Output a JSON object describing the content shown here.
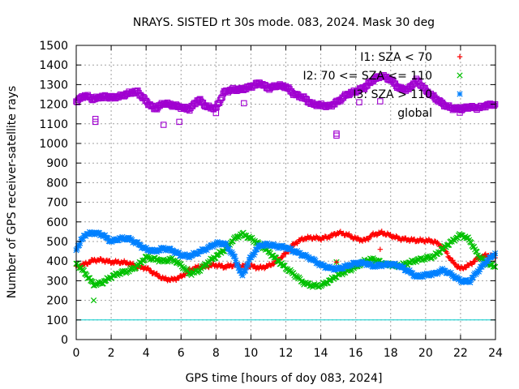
{
  "chart_data": {
    "type": "scatter",
    "title": "NRAYS. SISTED rt 30s mode. 083, 2024. Mask 30 deg",
    "xlabel": "GPS time [hours of doy 083, 2024]",
    "ylabel": "Number of GPS receiver-satellite rays",
    "xlim": [
      0,
      24
    ],
    "ylim": [
      0,
      1500
    ],
    "xticks": [
      "0",
      "2",
      "4",
      "6",
      "8",
      "10",
      "12",
      "14",
      "16",
      "18",
      "20",
      "22",
      "24"
    ],
    "yticks": [
      "0",
      "100",
      "200",
      "300",
      "400",
      "500",
      "600",
      "700",
      "800",
      "900",
      "1000",
      "1100",
      "1200",
      "1300",
      "1400",
      "1500"
    ],
    "grid": true,
    "legend_position": "top-right",
    "threshold_line": {
      "y": 100,
      "color": "#00cccc"
    },
    "series": [
      {
        "name": "I1: SZA < 70",
        "marker": "+",
        "color": "#ff0000",
        "x": [
          0,
          0.5,
          1,
          1.5,
          2,
          2.5,
          3,
          3.5,
          4,
          4.5,
          5,
          5.5,
          6,
          6.5,
          7,
          7.5,
          8,
          8.5,
          9,
          9.5,
          10,
          10.5,
          11,
          11.5,
          12,
          12.5,
          13,
          13.5,
          14,
          14.5,
          15,
          15.5,
          16,
          16.5,
          17,
          17.5,
          18,
          18.5,
          19,
          19.5,
          20,
          20.5,
          21,
          21.5,
          22,
          22.5,
          23,
          23.5,
          24
        ],
        "y": [
          370,
          385,
          405,
          405,
          395,
          395,
          390,
          370,
          365,
          335,
          310,
          305,
          320,
          355,
          370,
          375,
          380,
          370,
          380,
          375,
          375,
          365,
          375,
          400,
          440,
          490,
          515,
          520,
          515,
          525,
          545,
          535,
          515,
          505,
          535,
          545,
          530,
          515,
          510,
          505,
          505,
          500,
          470,
          400,
          360,
          380,
          415,
          430,
          420
        ]
      },
      {
        "name": "I2: 70 <= SZA <= 110",
        "marker": "x",
        "color": "#00c000",
        "x": [
          0,
          0.5,
          1,
          1.5,
          2,
          2.5,
          3,
          3.5,
          4,
          4.5,
          5,
          5.5,
          6,
          6.5,
          7,
          7.5,
          8,
          8.5,
          9,
          9.5,
          10,
          10.5,
          11,
          11.5,
          12,
          12.5,
          13,
          13.5,
          14,
          14.5,
          15,
          15.5,
          16,
          16.5,
          17,
          17.5,
          18,
          18.5,
          19,
          19.5,
          20,
          20.5,
          21,
          21.5,
          22,
          22.5,
          23,
          23.5,
          24
        ],
        "y": [
          390,
          340,
          280,
          290,
          320,
          340,
          350,
          375,
          420,
          410,
          400,
          410,
          380,
          335,
          350,
          390,
          425,
          460,
          510,
          540,
          515,
          485,
          450,
          405,
          365,
          330,
          290,
          275,
          275,
          300,
          330,
          350,
          370,
          400,
          410,
          390,
          380,
          375,
          390,
          405,
          415,
          425,
          465,
          500,
          535,
          510,
          430,
          390,
          370
        ]
      },
      {
        "name": "I3: SZA > 110",
        "marker": "*",
        "color": "#0080ff",
        "x": [
          0,
          0.5,
          1,
          1.5,
          2,
          2.5,
          3,
          3.5,
          4,
          4.5,
          5,
          5.5,
          6,
          6.5,
          7,
          7.5,
          8,
          8.5,
          9,
          9.5,
          10,
          10.5,
          11,
          11.5,
          12,
          12.5,
          13,
          13.5,
          14,
          14.5,
          15,
          15.5,
          16,
          16.5,
          17,
          17.5,
          18,
          18.5,
          19,
          19.5,
          20,
          20.5,
          21,
          21.5,
          22,
          22.5,
          23,
          23.5,
          24
        ],
        "y": [
          460,
          535,
          545,
          535,
          500,
          515,
          515,
          490,
          460,
          450,
          465,
          455,
          430,
          425,
          445,
          465,
          490,
          490,
          430,
          325,
          420,
          480,
          485,
          475,
          470,
          450,
          430,
          410,
          380,
          365,
          360,
          375,
          390,
          390,
          375,
          380,
          385,
          375,
          350,
          320,
          330,
          335,
          355,
          330,
          300,
          295,
          350,
          400,
          440
        ]
      },
      {
        "name": "global",
        "marker": "square",
        "color": "#a000d0",
        "x": [
          0,
          0.5,
          1,
          1.5,
          2,
          2.5,
          3,
          3.5,
          4,
          4.5,
          5,
          5.5,
          6,
          6.5,
          7,
          7.5,
          8,
          8.5,
          9,
          9.5,
          10,
          10.5,
          11,
          11.5,
          12,
          12.5,
          13,
          13.5,
          14,
          14.5,
          15,
          15.5,
          16,
          16.5,
          17,
          17.5,
          18,
          18.5,
          19,
          19.5,
          20,
          20.5,
          21,
          21.5,
          22,
          22.5,
          23,
          23.5,
          24
        ],
        "y": [
          1215,
          1245,
          1225,
          1240,
          1235,
          1240,
          1255,
          1265,
          1215,
          1175,
          1205,
          1195,
          1185,
          1175,
          1225,
          1185,
          1180,
          1265,
          1275,
          1275,
          1290,
          1310,
          1280,
          1295,
          1290,
          1250,
          1235,
          1200,
          1195,
          1190,
          1215,
          1250,
          1265,
          1285,
          1325,
          1345,
          1325,
          1280,
          1275,
          1325,
          1270,
          1235,
          1200,
          1180,
          1175,
          1185,
          1180,
          1195,
          1200
        ]
      }
    ],
    "outliers": [
      {
        "series": "global",
        "x": [
          1.1,
          1.1,
          5.0,
          5.9,
          8.0,
          9.6,
          14.9,
          14.9,
          16.2,
          17.4
        ],
        "y": [
          1125,
          1110,
          1095,
          1110,
          1155,
          1205,
          1040,
          1050,
          1210,
          1215
        ]
      },
      {
        "series": "I2: 70 <= SZA <= 110",
        "x": [
          1.0,
          14.9
        ],
        "y": [
          200,
          395
        ]
      },
      {
        "series": "I1: SZA < 70",
        "x": [
          14.9,
          17.4
        ],
        "y": [
          395,
          460
        ]
      }
    ]
  }
}
